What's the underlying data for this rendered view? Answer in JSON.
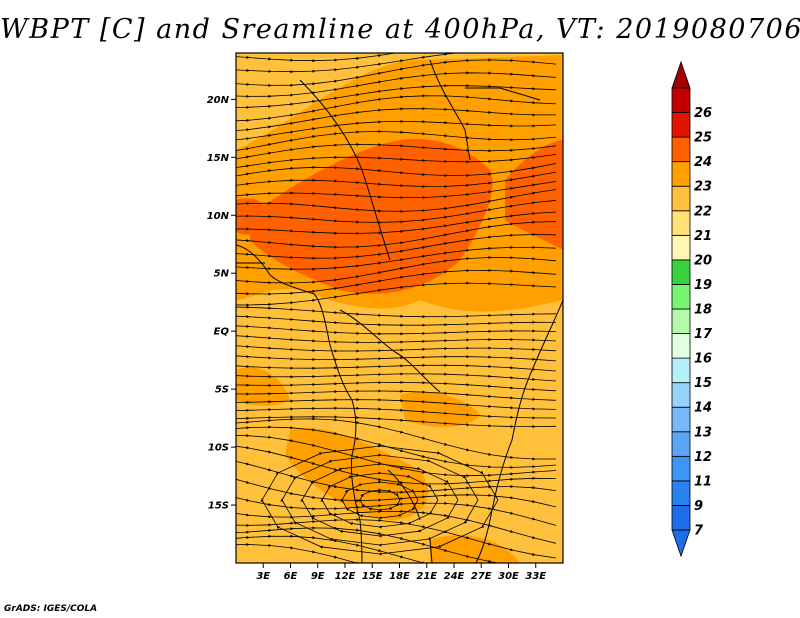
{
  "title": "WBPT [C] and Sreamline at 400hPa, VT: 2019080706",
  "credit": "GrADS: IGES/COLA",
  "map": {
    "lon_range": [
      0,
      36
    ],
    "lat_range": [
      -20,
      24
    ],
    "lat_ticks": [
      {
        "value": 20,
        "label": "20N"
      },
      {
        "value": 15,
        "label": "15N"
      },
      {
        "value": 10,
        "label": "10N"
      },
      {
        "value": 5,
        "label": "5N"
      },
      {
        "value": 0,
        "label": "EQ"
      },
      {
        "value": -5,
        "label": "5S"
      },
      {
        "value": -10,
        "label": "10S"
      },
      {
        "value": -15,
        "label": "15S"
      }
    ],
    "lon_ticks": [
      {
        "value": 3,
        "label": "3E"
      },
      {
        "value": 6,
        "label": "6E"
      },
      {
        "value": 9,
        "label": "9E"
      },
      {
        "value": 12,
        "label": "12E"
      },
      {
        "value": 15,
        "label": "15E"
      },
      {
        "value": 18,
        "label": "18E"
      },
      {
        "value": 21,
        "label": "21E"
      },
      {
        "value": 24,
        "label": "24E"
      },
      {
        "value": 27,
        "label": "27E"
      },
      {
        "value": 30,
        "label": "30E"
      },
      {
        "value": 33,
        "label": "33E"
      }
    ]
  },
  "colorbar": {
    "levels": [
      {
        "label": "7",
        "color": "#1e6eeb"
      },
      {
        "label": "9",
        "color": "#2882f0"
      },
      {
        "label": "11",
        "color": "#3c96f5"
      },
      {
        "label": "12",
        "color": "#5aa5f5"
      },
      {
        "label": "13",
        "color": "#78b9fa"
      },
      {
        "label": "14",
        "color": "#96d2fa"
      },
      {
        "label": "15",
        "color": "#b4f0fa"
      },
      {
        "label": "16",
        "color": "#e1ffe1"
      },
      {
        "label": "17",
        "color": "#b4faaa"
      },
      {
        "label": "18",
        "color": "#78f573"
      },
      {
        "label": "19",
        "color": "#37d23c"
      },
      {
        "label": "20",
        "color": "#fff5b4"
      },
      {
        "label": "21",
        "color": "#ffe178"
      },
      {
        "label": "22",
        "color": "#ffc03c"
      },
      {
        "label": "23",
        "color": "#ffa000"
      },
      {
        "label": "24",
        "color": "#ff6000"
      },
      {
        "label": "25",
        "color": "#e11400"
      },
      {
        "label": "26",
        "color": "#c00000"
      }
    ],
    "under_color": "#1e6eeb",
    "over_color": "#a50000"
  },
  "colors": {
    "base_field": "#ffc03c",
    "mid_field": "#ffa000",
    "hot_field": "#ff6000",
    "streamline": "#000000"
  }
}
